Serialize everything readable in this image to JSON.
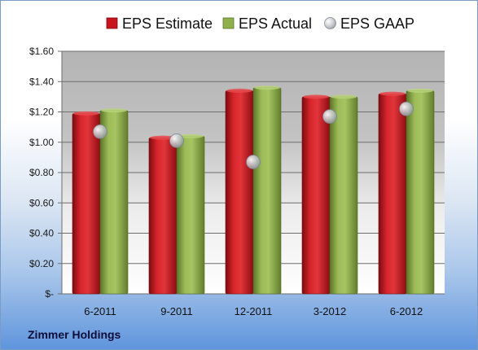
{
  "company": "Zimmer Holdings",
  "chart_data": {
    "type": "bar",
    "categories": [
      "6-2011",
      "9-2011",
      "12-2011",
      "3-2012",
      "6-2012"
    ],
    "series": [
      {
        "name": "EPS Estimate",
        "kind": "bar",
        "color": "#c8141c",
        "values": [
          1.19,
          1.03,
          1.34,
          1.3,
          1.32
        ]
      },
      {
        "name": "EPS Actual",
        "kind": "bar",
        "color": "#8fb04a",
        "values": [
          1.21,
          1.04,
          1.36,
          1.3,
          1.34
        ]
      },
      {
        "name": "EPS GAAP",
        "kind": "marker",
        "color": "#bfc3c9",
        "values": [
          1.07,
          1.01,
          0.87,
          1.17,
          1.22
        ]
      }
    ],
    "ylim": [
      0,
      1.6
    ],
    "yticks": [
      0,
      0.2,
      0.4,
      0.6,
      0.8,
      1.0,
      1.2,
      1.4,
      1.6
    ],
    "ytick_labels": [
      "$-",
      "$0.20",
      "$0.40",
      "$0.60",
      "$0.80",
      "$1.00",
      "$1.20",
      "$1.40",
      "$1.60"
    ],
    "grid": true,
    "legend": "top"
  }
}
